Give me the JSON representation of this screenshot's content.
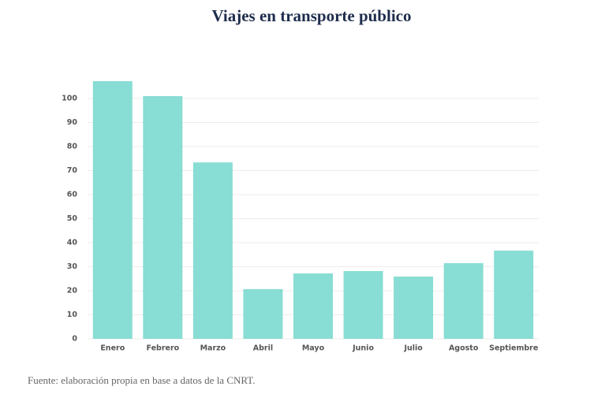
{
  "chart_data": {
    "type": "bar",
    "title": "Viajes en transporte público",
    "categories": [
      "Enero",
      "Febrero",
      "Marzo",
      "Abril",
      "Mayo",
      "Junio",
      "Julio",
      "Agosto",
      "Septiembre"
    ],
    "values": [
      107.2,
      101,
      73.4,
      20.7,
      27.2,
      28.2,
      25.9,
      31.5,
      36.7
    ],
    "color": "#88ddd4",
    "ylim": [
      0,
      110
    ],
    "yticks": [
      0,
      10,
      20,
      30,
      40,
      50,
      60,
      70,
      80,
      90,
      100
    ],
    "grid": true,
    "source": "Fuente: elaboración propia en base a datos de la CNRT."
  }
}
